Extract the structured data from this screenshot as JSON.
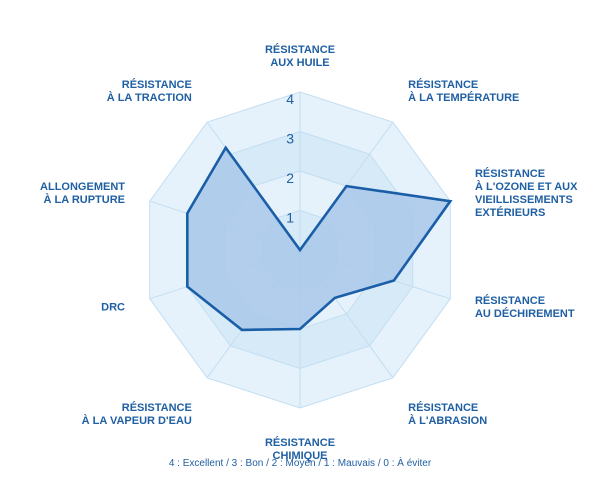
{
  "chart_data": {
    "type": "radar",
    "title": "",
    "axes": [
      [
        "RÉSISTANCE",
        "AUX HUILE"
      ],
      [
        "RÉSISTANCE",
        "À LA TEMPÉRATURE"
      ],
      [
        "RÉSISTANCE",
        "À L'OZONE ET AUX",
        "VIEILLISSEMENTS",
        "EXTÉRIEURS"
      ],
      [
        "RÉSISTANCE",
        "AU DÉCHIREMENT"
      ],
      [
        "RÉSISTANCE",
        "À L'ABRASION"
      ],
      [
        "RÉSISTANCE",
        "CHIMIQUE"
      ],
      [
        "RÉSISTANCE",
        "À LA VAPEUR D'EAU"
      ],
      [
        "DRC"
      ],
      [
        "ALLONGEMENT",
        "À LA RUPTURE"
      ],
      [
        "RÉSISTANCE",
        "À LA TRACTION"
      ]
    ],
    "values": [
      0,
      2,
      4,
      2.5,
      1.5,
      2,
      2.5,
      3,
      3,
      3.2
    ],
    "range": [
      0,
      4
    ],
    "ticks": [
      "1",
      "2",
      "3",
      "4"
    ],
    "colors": {
      "series_fill": "#a9c8ea",
      "series_stroke": "#1a5ea8",
      "grid_band_outer": "#e6f2fb",
      "grid_band_inner": "#d7eaf7",
      "grid_line": "#c2def2",
      "label": "#1f5fa3"
    },
    "legend_text": "4 : Excellent / 3 : Bon / 2 :  Moyen / 1 : Mauvais / 0 : À éviter"
  }
}
